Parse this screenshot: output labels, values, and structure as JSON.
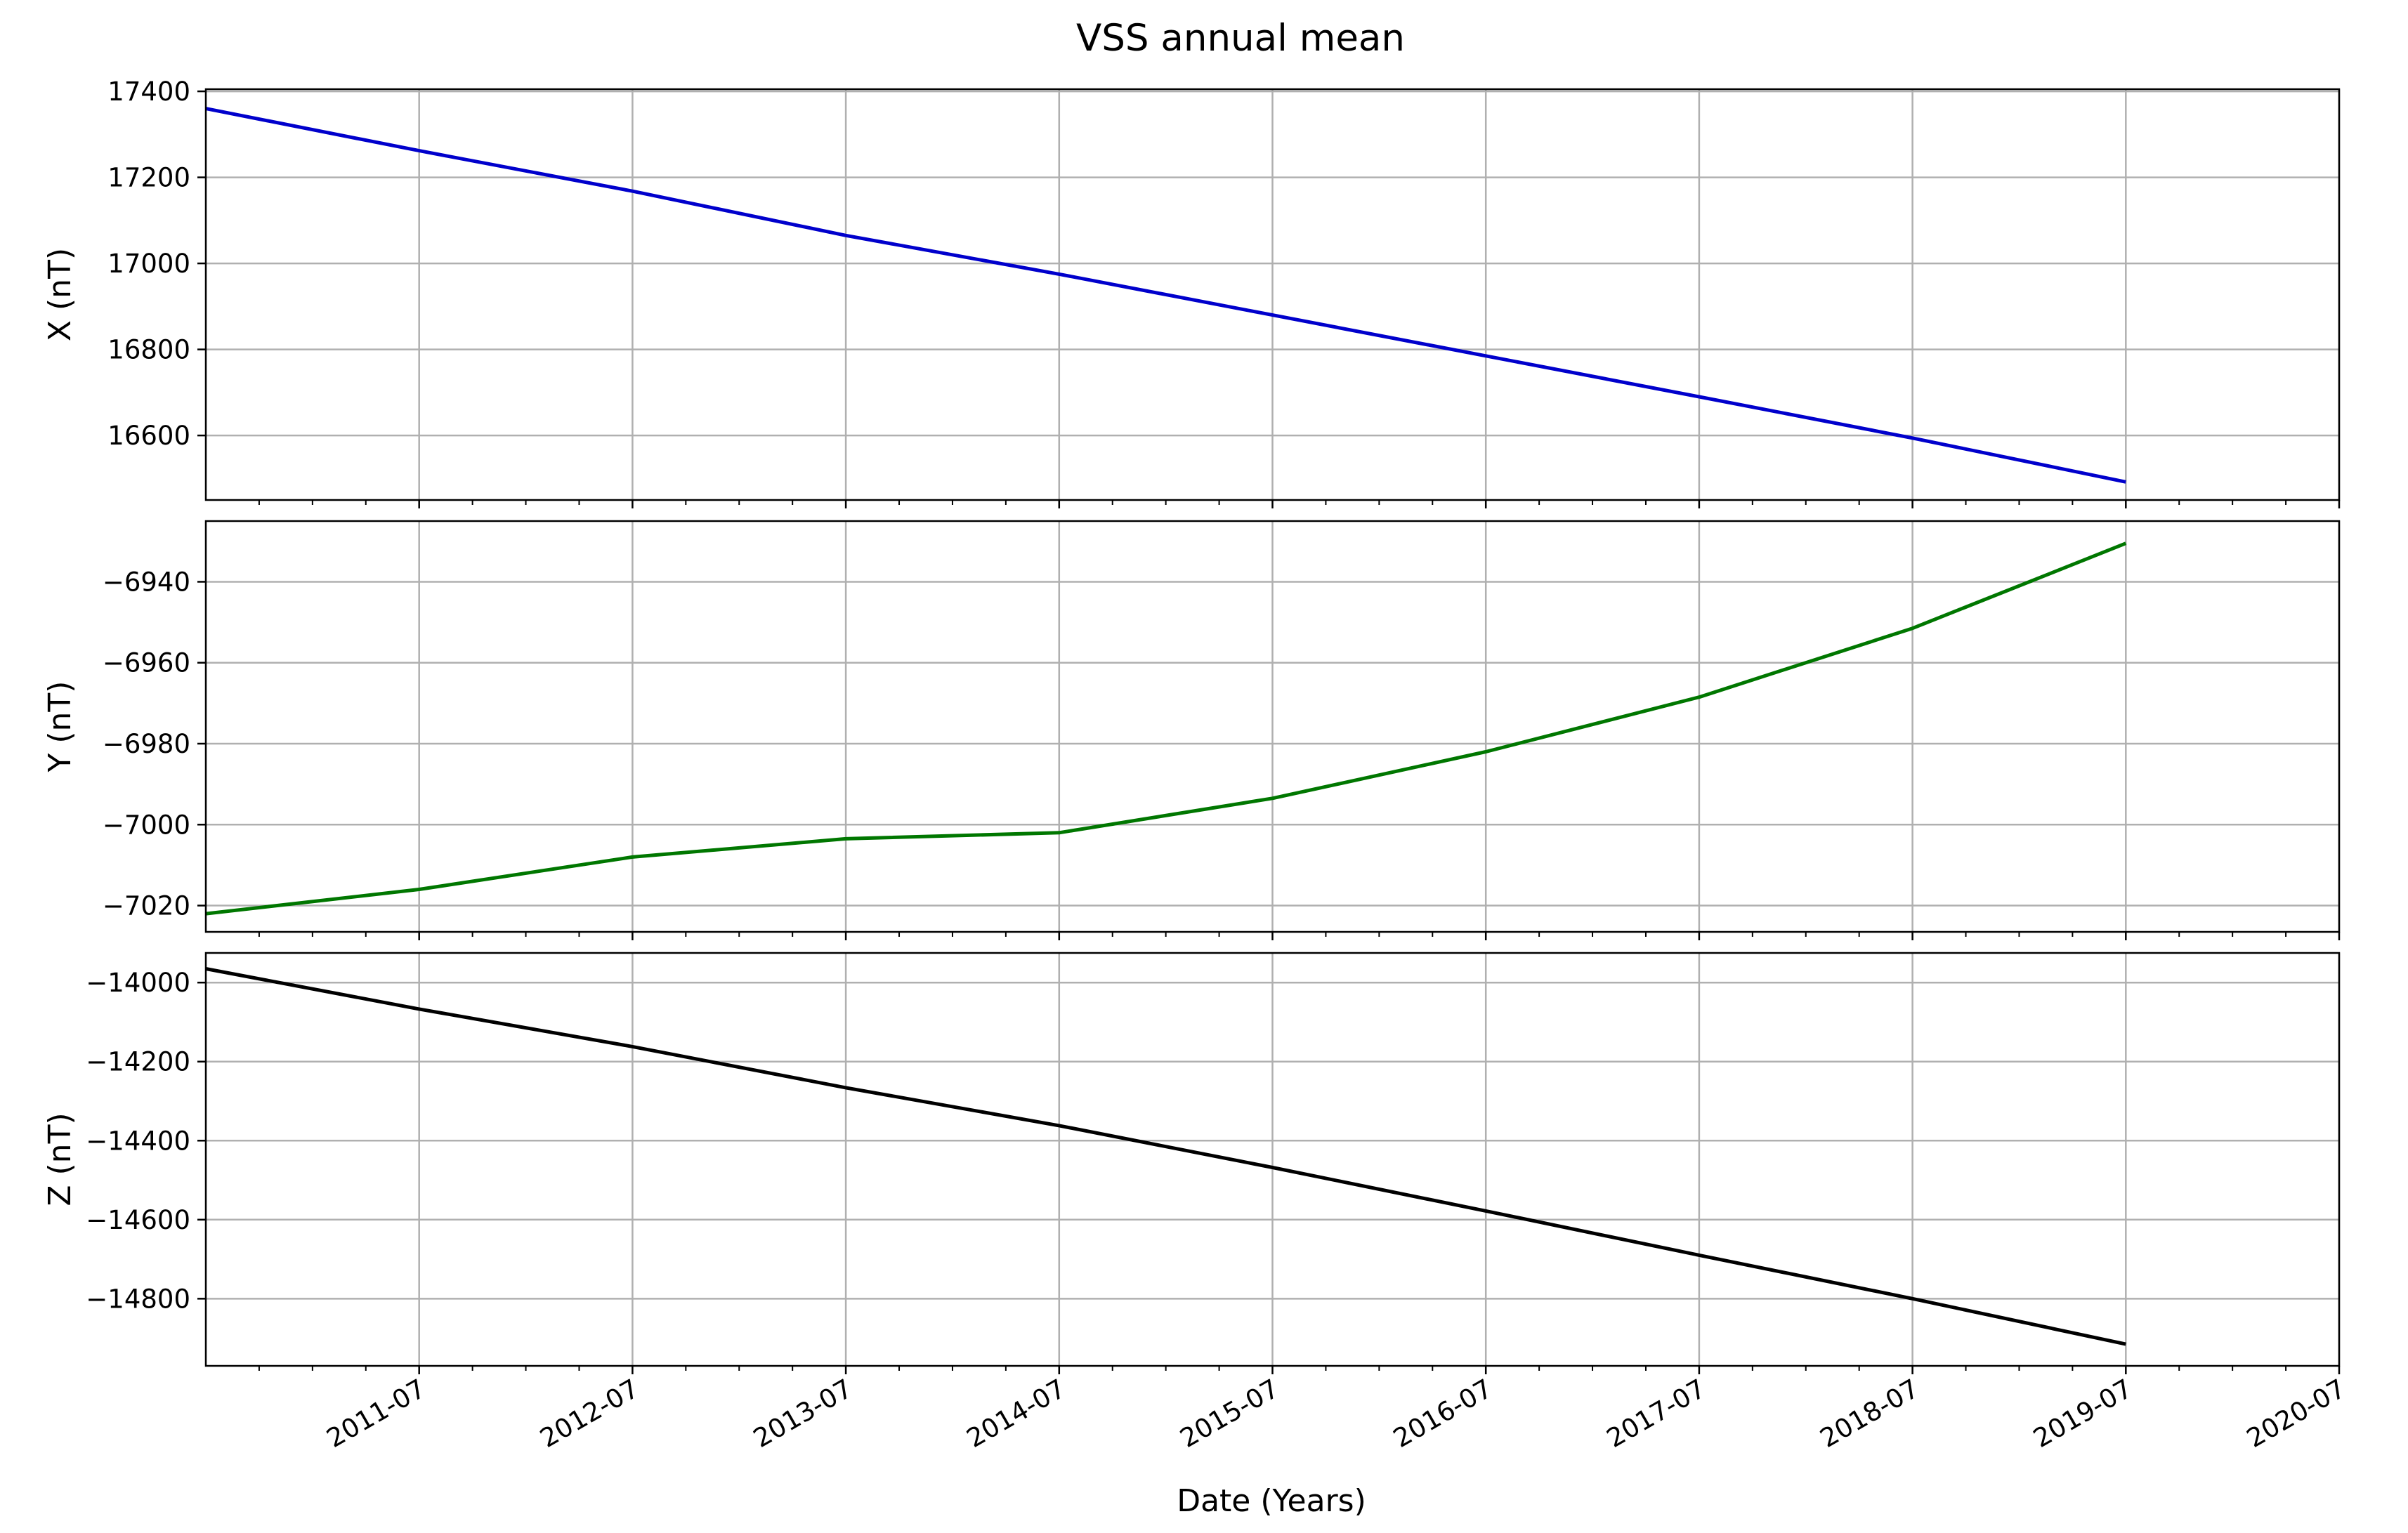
{
  "title": "VSS annual mean",
  "chart_data": {
    "type": "line",
    "title": "VSS annual mean",
    "xlabel": "Date (Years)",
    "x": [
      "2010-07",
      "2011-07",
      "2012-07",
      "2013-07",
      "2014-07",
      "2015-07",
      "2016-07",
      "2017-07",
      "2018-07",
      "2019-07"
    ],
    "xlim": [
      "2010-07",
      "2020-07"
    ],
    "x_ticks": [
      "2011-07",
      "2012-07",
      "2013-07",
      "2014-07",
      "2015-07",
      "2016-07",
      "2017-07",
      "2018-07",
      "2019-07",
      "2020-07"
    ],
    "grid": true,
    "shared_x": true,
    "panels": [
      {
        "ylabel": "X (nT)",
        "ylim": [
          16450,
          17405
        ],
        "y_ticks": [
          16600,
          16800,
          17000,
          17200,
          17400
        ],
        "y_tick_labels": [
          "16600",
          "16800",
          "17000",
          "17200",
          "17400"
        ],
        "color": "#0000cc",
        "values": [
          17360,
          17262,
          17168,
          17065,
          16975,
          16880,
          16785,
          16690,
          16594,
          16492
        ]
      },
      {
        "ylabel": "Y (nT)",
        "ylim": [
          -7026.5,
          -6925
        ],
        "y_ticks": [
          -7020,
          -7000,
          -6980,
          -6960,
          -6940
        ],
        "y_tick_labels": [
          "−7020",
          "−7000",
          "−6980",
          "−6960",
          "−6940"
        ],
        "color": "#007700",
        "values": [
          -7022,
          -7016,
          -7008,
          -7003.5,
          -7002,
          -6993.5,
          -6982,
          -6968.5,
          -6951.5,
          -6930.5
        ]
      },
      {
        "ylabel": "Z (nT)",
        "ylim": [
          -14970,
          -13925
        ],
        "y_ticks": [
          -14800,
          -14600,
          -14400,
          -14200,
          -14000
        ],
        "y_tick_labels": [
          "−14800",
          "−14600",
          "−14400",
          "−14200",
          "−14000"
        ],
        "color": "#000000",
        "values": [
          -13965,
          -14067,
          -14162,
          -14266,
          -14362,
          -14468,
          -14578,
          -14690,
          -14800,
          -14915
        ]
      }
    ]
  }
}
